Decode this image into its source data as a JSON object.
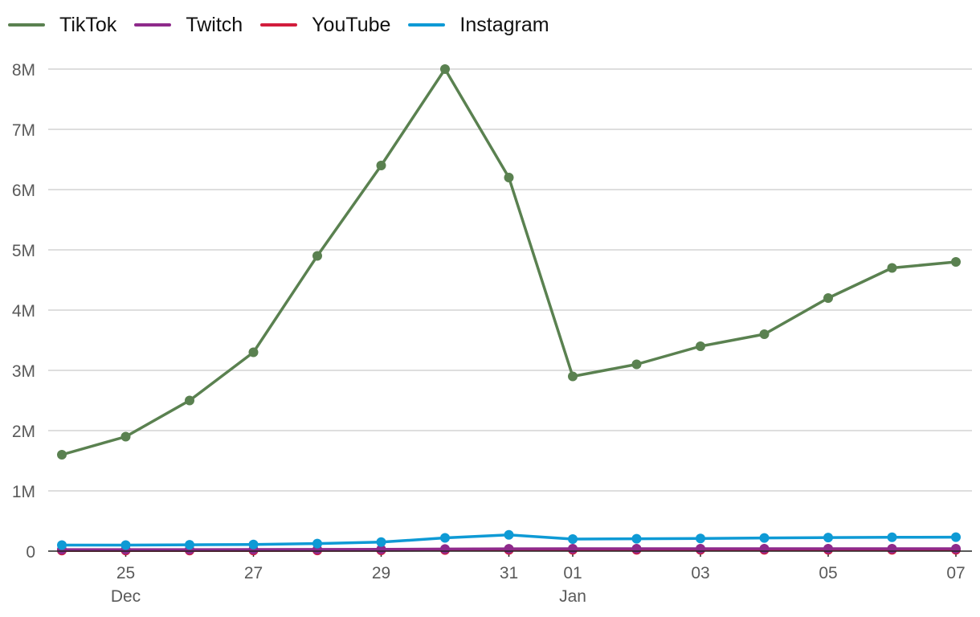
{
  "chart_data": {
    "type": "line",
    "title": "",
    "xlabel": "",
    "ylabel": "",
    "ylim": [
      0,
      8000000
    ],
    "y_ticks": [
      0,
      1000000,
      2000000,
      3000000,
      4000000,
      5000000,
      6000000,
      7000000,
      8000000
    ],
    "y_tick_labels": [
      "0",
      "1M",
      "2M",
      "3M",
      "4M",
      "5M",
      "6M",
      "7M",
      "8M"
    ],
    "grid": true,
    "legend_position": "top-left",
    "x": [
      "2023-12-24",
      "2023-12-25",
      "2023-12-26",
      "2023-12-27",
      "2023-12-28",
      "2023-12-29",
      "2023-12-30",
      "2023-12-31",
      "2024-01-01",
      "2024-01-02",
      "2024-01-03",
      "2024-01-04",
      "2024-01-05",
      "2024-01-06",
      "2024-01-07"
    ],
    "x_ticks": [
      {
        "index": 1,
        "label": "25",
        "sublabel": "Dec"
      },
      {
        "index": 3,
        "label": "27",
        "sublabel": ""
      },
      {
        "index": 5,
        "label": "29",
        "sublabel": ""
      },
      {
        "index": 7,
        "label": "31",
        "sublabel": ""
      },
      {
        "index": 8,
        "label": "01",
        "sublabel": "Jan"
      },
      {
        "index": 10,
        "label": "03",
        "sublabel": ""
      },
      {
        "index": 12,
        "label": "05",
        "sublabel": ""
      },
      {
        "index": 14,
        "label": "07",
        "sublabel": ""
      }
    ],
    "series": [
      {
        "name": "TikTok",
        "color": "#5a8150",
        "values": [
          1600000,
          1900000,
          2500000,
          3300000,
          4900000,
          6400000,
          8000000,
          6200000,
          2900000,
          3100000,
          3400000,
          3600000,
          4200000,
          4700000,
          4800000
        ]
      },
      {
        "name": "Twitch",
        "color": "#8e2a8b",
        "values": [
          25000,
          25000,
          25000,
          26000,
          28000,
          30000,
          35000,
          38000,
          40000,
          40000,
          40000,
          40000,
          40000,
          40000,
          40000
        ]
      },
      {
        "name": "YouTube",
        "color": "#d21d3c",
        "values": [
          10000,
          10000,
          10000,
          10000,
          12000,
          14000,
          18000,
          20000,
          22000,
          22000,
          22000,
          22000,
          22000,
          22000,
          22000
        ]
      },
      {
        "name": "Instagram",
        "color": "#0e9ad5",
        "values": [
          100000,
          100000,
          105000,
          110000,
          125000,
          150000,
          220000,
          270000,
          200000,
          205000,
          210000,
          218000,
          225000,
          230000,
          232000
        ]
      }
    ]
  }
}
